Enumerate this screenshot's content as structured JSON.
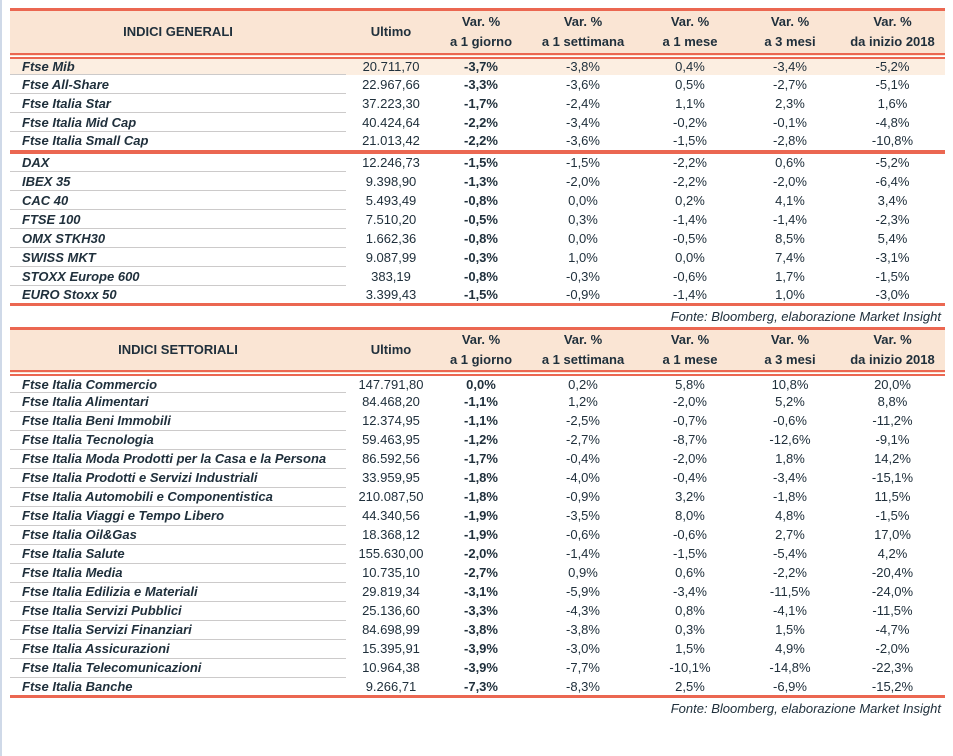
{
  "page": {
    "colors": {
      "accent": "#EB6751",
      "header_bg": "#FAE5D4",
      "highlight_bg": "#FCEEE1",
      "text": "#20303C",
      "row_line": "#CCCACA",
      "edge_line": "#CFD9E8"
    }
  },
  "tables": [
    {
      "header": {
        "title": "INDICI GENERALI",
        "ultimo": "Ultimo",
        "var_label": "Var. %",
        "periods": [
          "a 1 giorno",
          "a 1 settimana",
          "a 1 mese",
          "a 3 mesi",
          "da inizio 2018"
        ]
      },
      "groups": [
        [
          {
            "highlight": true,
            "cells": [
              "Ftse Mib",
              "20.711,70",
              "-3,7%",
              "-3,8%",
              "0,4%",
              "-3,4%",
              "-5,2%"
            ]
          },
          {
            "cells": [
              "Ftse All-Share",
              "22.967,66",
              "-3,3%",
              "-3,6%",
              "0,5%",
              "-2,7%",
              "-5,1%"
            ]
          },
          {
            "cells": [
              "Ftse Italia Star",
              "37.223,30",
              "-1,7%",
              "-2,4%",
              "1,1%",
              "2,3%",
              "1,6%"
            ]
          },
          {
            "cells": [
              "Ftse Italia Mid Cap",
              "40.424,64",
              "-2,2%",
              "-3,4%",
              "-0,2%",
              "-0,1%",
              "-4,8%"
            ]
          },
          {
            "cells": [
              "Ftse Italia Small Cap",
              "21.013,42",
              "-2,2%",
              "-3,6%",
              "-1,5%",
              "-2,8%",
              "-10,8%"
            ]
          }
        ],
        [
          {
            "cells": [
              "DAX",
              "12.246,73",
              "-1,5%",
              "-1,5%",
              "-2,2%",
              "0,6%",
              "-5,2%"
            ]
          },
          {
            "cells": [
              "IBEX 35",
              "9.398,90",
              "-1,3%",
              "-2,0%",
              "-2,2%",
              "-2,0%",
              "-6,4%"
            ]
          },
          {
            "cells": [
              "CAC 40",
              "5.493,49",
              "-0,8%",
              "0,0%",
              "0,2%",
              "4,1%",
              "3,4%"
            ]
          },
          {
            "cells": [
              "FTSE 100",
              "7.510,20",
              "-0,5%",
              "0,3%",
              "-1,4%",
              "-1,4%",
              "-2,3%"
            ]
          },
          {
            "cells": [
              "OMX STKH30",
              "1.662,36",
              "-0,8%",
              "0,0%",
              "-0,5%",
              "8,5%",
              "5,4%"
            ]
          },
          {
            "cells": [
              "SWISS MKT",
              "9.087,99",
              "-0,3%",
              "1,0%",
              "0,0%",
              "7,4%",
              "-3,1%"
            ]
          },
          {
            "cells": [
              "STOXX Europe 600",
              "383,19",
              "-0,8%",
              "-0,3%",
              "-0,6%",
              "1,7%",
              "-1,5%"
            ]
          },
          {
            "cells": [
              "EURO Stoxx 50",
              "3.399,43",
              "-1,5%",
              "-0,9%",
              "-1,4%",
              "1,0%",
              "-3,0%"
            ]
          }
        ]
      ],
      "fonte": "Fonte: Bloomberg, elaborazione Market Insight"
    },
    {
      "header": {
        "title": "INDICI SETTORIALI",
        "ultimo": "Ultimo",
        "var_label": "Var. %",
        "periods": [
          "a 1 giorno",
          "a 1 settimana",
          "a 1 mese",
          "a 3 mesi",
          "da inizio 2018"
        ]
      },
      "groups": [
        [
          {
            "cells": [
              "Ftse Italia Commercio",
              "147.791,80",
              "0,0%",
              "0,2%",
              "5,8%",
              "10,8%",
              "20,0%"
            ]
          },
          {
            "cells": [
              "Ftse Italia Alimentari",
              "84.468,20",
              "-1,1%",
              "1,2%",
              "-2,0%",
              "5,2%",
              "8,8%"
            ]
          },
          {
            "cells": [
              "Ftse Italia Beni Immobili",
              "12.374,95",
              "-1,1%",
              "-2,5%",
              "-0,7%",
              "-0,6%",
              "-11,2%"
            ]
          },
          {
            "cells": [
              "Ftse Italia Tecnologia",
              "59.463,95",
              "-1,2%",
              "-2,7%",
              "-8,7%",
              "-12,6%",
              "-9,1%"
            ]
          },
          {
            "cells": [
              "Ftse Italia Moda Prodotti per la Casa e la Persona",
              "86.592,56",
              "-1,7%",
              "-0,4%",
              "-2,0%",
              "1,8%",
              "14,2%"
            ]
          },
          {
            "cells": [
              "Ftse Italia Prodotti e Servizi Industriali",
              "33.959,95",
              "-1,8%",
              "-4,0%",
              "-0,4%",
              "-3,4%",
              "-15,1%"
            ]
          },
          {
            "cells": [
              "Ftse Italia Automobili e Componentistica",
              "210.087,50",
              "-1,8%",
              "-0,9%",
              "3,2%",
              "-1,8%",
              "11,5%"
            ]
          },
          {
            "cells": [
              "Ftse Italia Viaggi e Tempo Libero",
              "44.340,56",
              "-1,9%",
              "-3,5%",
              "8,0%",
              "4,8%",
              "-1,5%"
            ]
          },
          {
            "cells": [
              "Ftse Italia Oil&Gas",
              "18.368,12",
              "-1,9%",
              "-0,6%",
              "-0,6%",
              "2,7%",
              "17,0%"
            ]
          },
          {
            "cells": [
              "Ftse Italia Salute",
              "155.630,00",
              "-2,0%",
              "-1,4%",
              "-1,5%",
              "-5,4%",
              "4,2%"
            ]
          },
          {
            "cells": [
              "Ftse Italia Media",
              "10.735,10",
              "-2,7%",
              "0,9%",
              "0,6%",
              "-2,2%",
              "-20,4%"
            ]
          },
          {
            "cells": [
              "Ftse Italia Edilizia e Materiali",
              "29.819,34",
              "-3,1%",
              "-5,9%",
              "-3,4%",
              "-11,5%",
              "-24,0%"
            ]
          },
          {
            "cells": [
              "Ftse Italia Servizi Pubblici",
              "25.136,60",
              "-3,3%",
              "-4,3%",
              "0,8%",
              "-4,1%",
              "-11,5%"
            ]
          },
          {
            "cells": [
              "Ftse Italia Servizi Finanziari",
              "84.698,99",
              "-3,8%",
              "-3,8%",
              "0,3%",
              "1,5%",
              "-4,7%"
            ]
          },
          {
            "cells": [
              "Ftse Italia Assicurazioni",
              "15.395,91",
              "-3,9%",
              "-3,0%",
              "1,5%",
              "4,9%",
              "-2,0%"
            ]
          },
          {
            "cells": [
              "Ftse Italia Telecomunicazioni",
              "10.964,38",
              "-3,9%",
              "-7,7%",
              "-10,1%",
              "-14,8%",
              "-22,3%"
            ]
          },
          {
            "cells": [
              "Ftse Italia Banche",
              "9.266,71",
              "-7,3%",
              "-8,3%",
              "2,5%",
              "-6,9%",
              "-15,2%"
            ]
          }
        ]
      ],
      "fonte": "Fonte: Bloomberg, elaborazione Market Insight"
    }
  ]
}
